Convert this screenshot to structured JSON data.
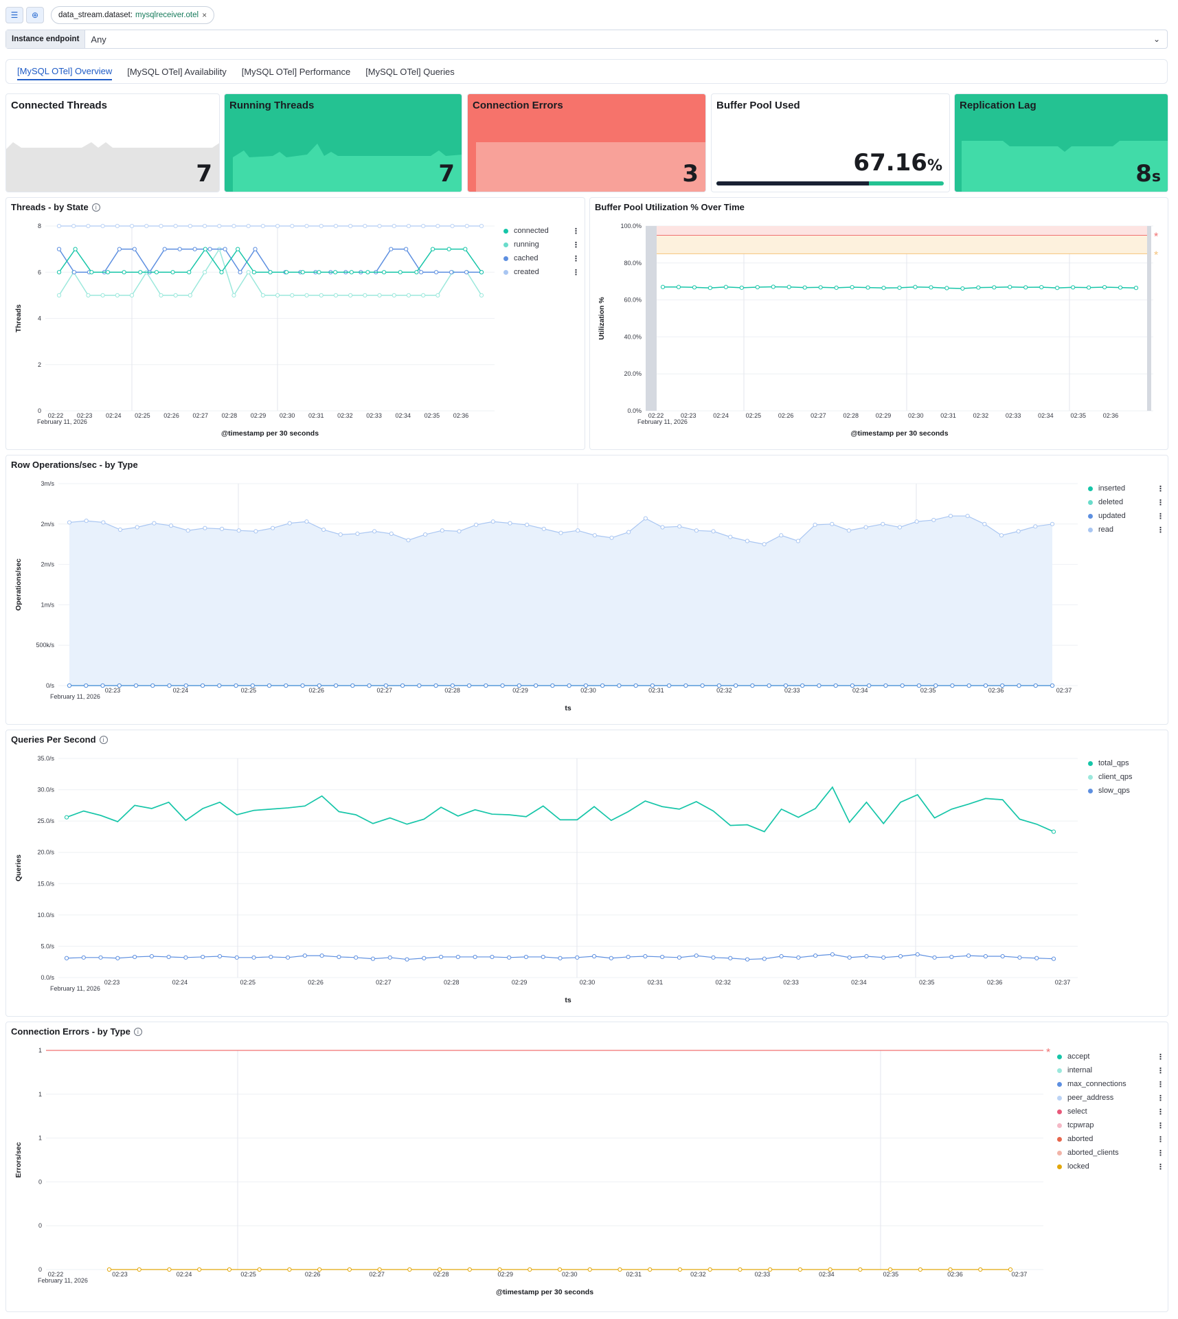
{
  "filter_bar": {
    "filter_key": "data_stream.dataset:",
    "filter_value": "mysqlreceiver.otel",
    "remove": "×"
  },
  "control": {
    "label": "Instance endpoint",
    "value": "Any"
  },
  "tabs": [
    {
      "label": "[MySQL OTel] Overview",
      "active": true
    },
    {
      "label": "[MySQL OTel] Availability",
      "active": false
    },
    {
      "label": "[MySQL OTel] Performance",
      "active": false
    },
    {
      "label": "[MySQL OTel] Queries",
      "active": false
    }
  ],
  "metrics": [
    {
      "title": "Connected Threads",
      "value": "7",
      "unit": ""
    },
    {
      "title": "Running Threads",
      "value": "7",
      "unit": ""
    },
    {
      "title": "Connection Errors",
      "value": "3",
      "unit": ""
    },
    {
      "title": "Buffer Pool Used",
      "value": "67.16",
      "unit": "%",
      "progress": 0.6716
    },
    {
      "title": "Replication Lag",
      "value": "8",
      "unit": "s"
    }
  ],
  "colors": {
    "teal": "#16c5a8",
    "teal_light": "#6adccb",
    "blue": "#5d8fe0",
    "blue_light": "#a9c6f2",
    "green_card": "#24c292",
    "red_card": "#f6736b",
    "yellow": "#e2a70b"
  },
  "chart_data": [
    {
      "type": "line",
      "title": "Threads - by State",
      "xlabel": "@timestamp per 30 seconds",
      "ylabel": "Threads",
      "date_label": "February 11, 2026",
      "ylim": [
        0,
        8
      ],
      "yticks": [
        "0",
        "2",
        "4",
        "6",
        "8"
      ],
      "xticks": [
        "02:22",
        "02:23",
        "02:24",
        "02:25",
        "02:26",
        "02:27",
        "02:28",
        "02:29",
        "02:30",
        "02:31",
        "02:32",
        "02:33",
        "02:34",
        "02:35",
        "02:36"
      ],
      "series": [
        {
          "name": "connected",
          "values": [
            6,
            7,
            6,
            6,
            6,
            6,
            6,
            6,
            6,
            7,
            6,
            7,
            6,
            6,
            6,
            6,
            6,
            6,
            6,
            6,
            6,
            6,
            6,
            7,
            7,
            7,
            6
          ]
        },
        {
          "name": "running",
          "values": [
            5,
            6,
            5,
            5,
            5,
            5,
            6,
            5,
            5,
            5,
            6,
            7,
            5,
            6,
            5,
            5,
            5,
            5,
            5,
            5,
            5,
            5,
            5,
            5,
            5,
            5,
            5,
            6,
            6,
            5
          ]
        },
        {
          "name": "cached",
          "values": [
            7,
            6,
            6,
            6,
            7,
            7,
            6,
            7,
            7,
            7,
            7,
            7,
            6,
            7,
            6,
            6,
            6,
            6,
            6,
            6,
            6,
            6,
            7,
            7,
            6,
            6,
            6,
            6,
            6
          ]
        },
        {
          "name": "created",
          "values": [
            8,
            8,
            8,
            8,
            8,
            8,
            8,
            8,
            8,
            8,
            8,
            8,
            8,
            8,
            8,
            8,
            8,
            8,
            8,
            8,
            8,
            8,
            8,
            8,
            8,
            8,
            8,
            8,
            8,
            8
          ]
        }
      ]
    },
    {
      "type": "line",
      "title": "Buffer Pool Utilization % Over Time",
      "xlabel": "@timestamp per 30 seconds",
      "ylabel": "Utilization %",
      "date_label": "February 11, 2026",
      "ylim": [
        0,
        100
      ],
      "yticks": [
        "0.0%",
        "20.0%",
        "40.0%",
        "60.0%",
        "80.0%",
        "100.0%"
      ],
      "xticks": [
        "02:22",
        "02:23",
        "02:24",
        "02:25",
        "02:26",
        "02:27",
        "02:28",
        "02:29",
        "02:30",
        "02:31",
        "02:32",
        "02:33",
        "02:34",
        "02:35",
        "02:36"
      ],
      "thresholds": {
        "critical": 95,
        "warning": 85
      },
      "series": [
        {
          "name": "utilization",
          "values": [
            67,
            67,
            66.8,
            66.5,
            67,
            66.6,
            66.9,
            67.1,
            67,
            66.7,
            66.8,
            66.6,
            66.9,
            66.7,
            66.5,
            66.6,
            67,
            66.8,
            66.4,
            66.2,
            66.7,
            66.8,
            67,
            66.8,
            66.9,
            66.5,
            66.8,
            66.7,
            66.9,
            66.7,
            66.5
          ]
        }
      ]
    },
    {
      "type": "area",
      "title": "Row Operations/sec - by Type",
      "xlabel": "ts",
      "ylabel": "Operations/sec",
      "date_label": "February 11, 2026",
      "ylim": [
        0,
        2.5
      ],
      "yticks": [
        "0/s",
        "500k/s",
        "1m/s",
        "2m/s",
        "2m/s",
        "3m/s"
      ],
      "xticks": [
        "02:23",
        "02:24",
        "02:25",
        "02:26",
        "02:27",
        "02:28",
        "02:29",
        "02:30",
        "02:31",
        "02:32",
        "02:33",
        "02:34",
        "02:35",
        "02:36",
        "02:37"
      ],
      "series": [
        {
          "name": "inserted",
          "values": [
            0,
            0,
            0,
            0,
            0,
            0,
            0,
            0,
            0,
            0,
            0,
            0,
            0,
            0,
            0,
            0,
            0,
            0,
            0,
            0,
            0,
            0,
            0,
            0,
            0,
            0,
            0,
            0,
            0,
            0,
            0,
            0,
            0,
            0,
            0,
            0,
            0,
            0,
            0,
            0,
            0,
            0,
            0,
            0,
            0,
            0,
            0,
            0,
            0,
            0,
            0,
            0,
            0,
            0,
            0,
            0,
            0,
            0,
            0,
            0
          ]
        },
        {
          "name": "deleted",
          "values": [
            0,
            0,
            0,
            0,
            0,
            0,
            0,
            0,
            0,
            0,
            0,
            0,
            0,
            0,
            0,
            0,
            0,
            0,
            0,
            0,
            0,
            0,
            0,
            0,
            0,
            0,
            0,
            0,
            0,
            0,
            0,
            0,
            0,
            0,
            0,
            0,
            0,
            0,
            0,
            0,
            0,
            0,
            0,
            0,
            0,
            0,
            0,
            0,
            0,
            0,
            0,
            0,
            0,
            0,
            0,
            0,
            0,
            0,
            0,
            0
          ]
        },
        {
          "name": "updated",
          "values": [
            0,
            0,
            0,
            0,
            0,
            0,
            0,
            0,
            0,
            0,
            0,
            0,
            0,
            0,
            0,
            0,
            0,
            0,
            0,
            0,
            0,
            0,
            0,
            0,
            0,
            0,
            0,
            0,
            0,
            0,
            0,
            0,
            0,
            0,
            0,
            0,
            0,
            0,
            0,
            0,
            0,
            0,
            0,
            0,
            0,
            0,
            0,
            0,
            0,
            0,
            0,
            0,
            0,
            0,
            0,
            0,
            0,
            0,
            0,
            0
          ]
        },
        {
          "name": "read",
          "values": [
            2.02,
            2.04,
            2.02,
            1.93,
            1.96,
            2.01,
            1.98,
            1.92,
            1.95,
            1.94,
            1.92,
            1.91,
            1.95,
            2.01,
            2.03,
            1.93,
            1.87,
            1.88,
            1.91,
            1.88,
            1.8,
            1.87,
            1.92,
            1.91,
            1.99,
            2.03,
            2.01,
            1.99,
            1.94,
            1.89,
            1.92,
            1.86,
            1.83,
            1.9,
            2.07,
            1.96,
            1.97,
            1.92,
            1.91,
            1.84,
            1.79,
            1.75,
            1.86,
            1.79,
            1.99,
            2,
            1.92,
            1.96,
            2,
            1.96,
            2.03,
            2.05,
            2.1,
            2.1,
            2,
            1.86,
            1.91,
            1.97,
            2
          ]
        }
      ]
    },
    {
      "type": "line",
      "title": "Queries Per Second",
      "xlabel": "ts",
      "ylabel": "Queries",
      "date_label": "February 11, 2026",
      "ylim": [
        0,
        35
      ],
      "yticks": [
        "0.0/s",
        "5.0/s",
        "10.0/s",
        "15.0/s",
        "20.0/s",
        "25.0/s",
        "30.0/s",
        "35.0/s"
      ],
      "xticks": [
        "02:23",
        "02:24",
        "02:25",
        "02:26",
        "02:27",
        "02:28",
        "02:29",
        "02:30",
        "02:31",
        "02:32",
        "02:33",
        "02:34",
        "02:35",
        "02:36",
        "02:37"
      ],
      "series": [
        {
          "name": "total_qps",
          "values": [
            25.6,
            26.6,
            25.9,
            24.9,
            27.5,
            27,
            28,
            25.1,
            27,
            28,
            26,
            26.7,
            26.9,
            27.1,
            27.4,
            29,
            26.5,
            26,
            24.6,
            25.5,
            24.5,
            25.3,
            27.2,
            25.8,
            26.8,
            26.1,
            26,
            25.7,
            27.4,
            25.2,
            25.2,
            27.3,
            25.1,
            26.5,
            28.2,
            27.3,
            26.9,
            28.1,
            26.6,
            24.3,
            24.4,
            23.3,
            26.9,
            25.6,
            27,
            30.4,
            24.8,
            28,
            24.6,
            28,
            29.2,
            25.5,
            26.9,
            27.7,
            28.6,
            28.4,
            25.3,
            24.5,
            23.3
          ]
        },
        {
          "name": "client_qps",
          "values": [
            25.6,
            26.6,
            25.9,
            24.9,
            27.5,
            27,
            28,
            25.1,
            27,
            28,
            26,
            26.7,
            26.9,
            27.1,
            27.4,
            29,
            26.5,
            26,
            24.6,
            25.5,
            24.5,
            25.3,
            27.2,
            25.8,
            26.8,
            26.1,
            26,
            25.7,
            27.4,
            25.2,
            25.2,
            27.3,
            25.1,
            26.5,
            28.2,
            27.3,
            26.9,
            28.1,
            26.6,
            24.3,
            24.4,
            23.3,
            26.9,
            25.6,
            27,
            30.4,
            24.8,
            28,
            24.6,
            28,
            29.2,
            25.5,
            26.9,
            27.7,
            28.6,
            28.4,
            25.3,
            24.5,
            23.3
          ]
        },
        {
          "name": "slow_qps",
          "values": [
            3.1,
            3.2,
            3.2,
            3.1,
            3.3,
            3.4,
            3.3,
            3.2,
            3.3,
            3.4,
            3.2,
            3.2,
            3.3,
            3.2,
            3.5,
            3.5,
            3.3,
            3.2,
            3,
            3.2,
            2.9,
            3.1,
            3.3,
            3.3,
            3.3,
            3.3,
            3.2,
            3.3,
            3.3,
            3.1,
            3.2,
            3.4,
            3.1,
            3.3,
            3.4,
            3.3,
            3.2,
            3.5,
            3.2,
            3.1,
            2.9,
            3,
            3.4,
            3.2,
            3.5,
            3.7,
            3.2,
            3.4,
            3.2,
            3.4,
            3.7,
            3.2,
            3.3,
            3.5,
            3.4,
            3.4,
            3.2,
            3.1,
            3
          ]
        }
      ]
    },
    {
      "type": "line",
      "title": "Connection Errors - by Type",
      "xlabel": "@timestamp per 30 seconds",
      "ylabel": "Errors/sec",
      "date_label": "February 11, 2026",
      "ylim": [
        0,
        1
      ],
      "yticks": [
        "0",
        "0",
        "0",
        "1",
        "1",
        "1"
      ],
      "xticks": [
        "02:22",
        "02:23",
        "02:24",
        "02:25",
        "02:26",
        "02:27",
        "02:28",
        "02:29",
        "02:30",
        "02:31",
        "02:32",
        "02:33",
        "02:34",
        "02:35",
        "02:36",
        "02:37"
      ],
      "thresholds": {
        "critical": 1
      },
      "series": [
        {
          "name": "accept",
          "values": []
        },
        {
          "name": "internal",
          "values": []
        },
        {
          "name": "max_connections",
          "values": []
        },
        {
          "name": "peer_address",
          "values": []
        },
        {
          "name": "select",
          "values": []
        },
        {
          "name": "tcpwrap",
          "values": []
        },
        {
          "name": "aborted",
          "values": []
        },
        {
          "name": "aborted_clients",
          "values": []
        },
        {
          "name": "locked",
          "values": [
            0,
            0,
            0,
            0,
            0,
            0,
            0,
            0,
            0,
            0,
            0,
            0,
            0,
            0,
            0,
            0,
            0,
            0,
            0,
            0,
            0,
            0,
            0,
            0,
            0,
            0,
            0,
            0,
            0,
            0,
            0
          ]
        }
      ]
    }
  ]
}
